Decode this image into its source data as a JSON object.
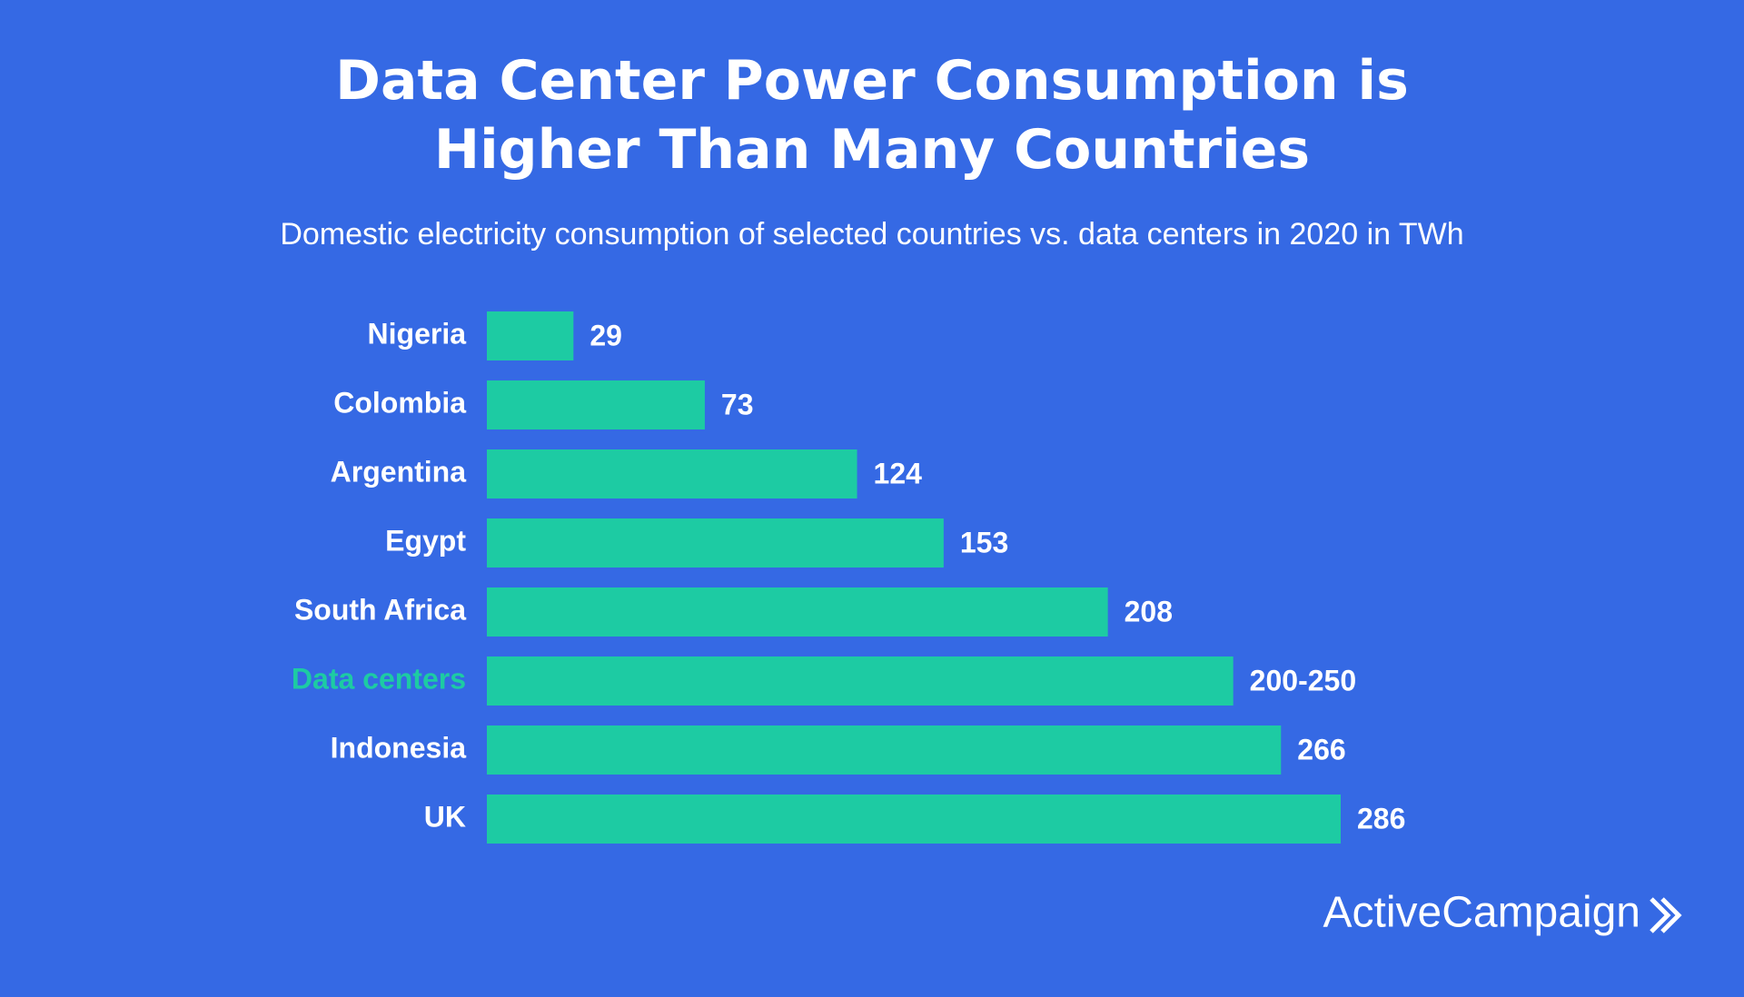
{
  "chart_data": {
    "type": "bar",
    "orientation": "horizontal",
    "title": "Data Center Power Consumption is Higher Than Many Countries",
    "subtitle": "Domestic electricity consumption of selected countries vs. data centers in 2020 in TWh",
    "categories": [
      "Nigeria",
      "Colombia",
      "Argentina",
      "Egypt",
      "South Africa",
      "Data centers",
      "Indonesia",
      "UK"
    ],
    "values": [
      29,
      73,
      124,
      153,
      208,
      250,
      266,
      286
    ],
    "value_labels": [
      null,
      null,
      null,
      null,
      null,
      "200-250",
      null,
      null
    ],
    "label_colors": [
      "#ffffff",
      "#ffffff",
      "#ffffff",
      "#ffffff",
      "#ffffff",
      "#1dcba3",
      "#ffffff",
      "#ffffff"
    ],
    "color": "#1dcba3",
    "background": "#3569e4",
    "brand": "ActiveCampaign"
  }
}
